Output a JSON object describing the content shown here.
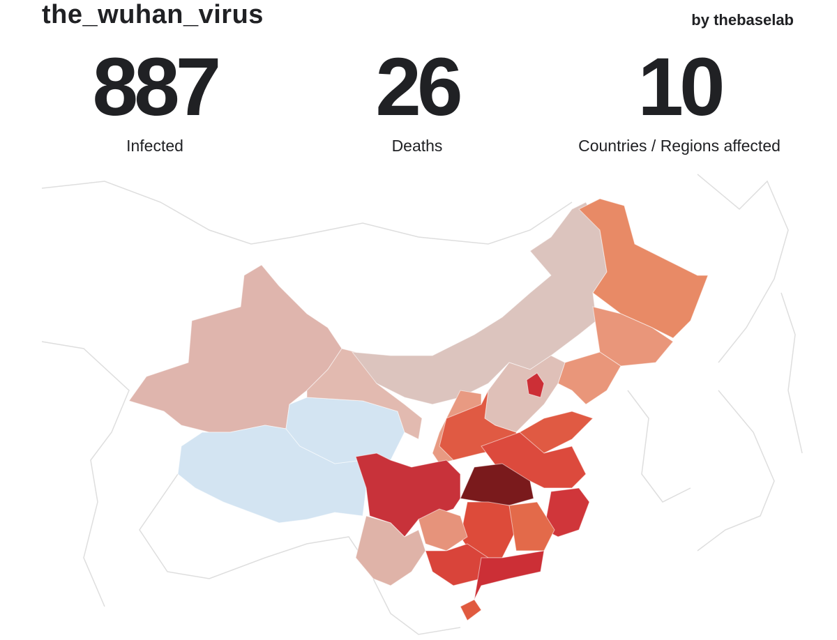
{
  "header": {
    "title": "the_wuhan_virus",
    "byline": "by thebaselab"
  },
  "stats": [
    {
      "value": 887,
      "label": "Infected"
    },
    {
      "value": 26,
      "label": "Deaths"
    },
    {
      "value": 10,
      "label": "Countries / Regions affected"
    }
  ]
}
